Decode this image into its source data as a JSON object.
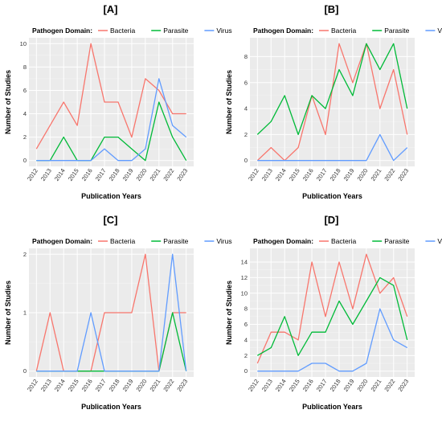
{
  "legend": {
    "title": "Pathogen Domain:",
    "items": [
      {
        "name": "Bacteria",
        "color": "#F8766D"
      },
      {
        "name": "Parasite",
        "color": "#00BA38"
      },
      {
        "name": "Virus",
        "color": "#619CFF"
      }
    ]
  },
  "chart_data": [
    {
      "type": "line",
      "title": "[A]",
      "xlabel": "Publication Years",
      "ylabel": "Number of Studies",
      "x": [
        "2012",
        "2013",
        "2014",
        "2015",
        "2016",
        "2017",
        "2018",
        "2019",
        "2020",
        "2021",
        "2022",
        "2023"
      ],
      "ylim": [
        0,
        10
      ],
      "yticks": [
        0,
        2,
        4,
        6,
        8,
        10
      ],
      "grid": true,
      "legend_position": "top",
      "series": [
        {
          "name": "Bacteria",
          "values": [
            1,
            3,
            5,
            3,
            10,
            5,
            5,
            2,
            7,
            6,
            4,
            4
          ]
        },
        {
          "name": "Parasite",
          "values": [
            0,
            0,
            2,
            0,
            0,
            2,
            2,
            1,
            0,
            5,
            2,
            0
          ]
        },
        {
          "name": "Virus",
          "values": [
            0,
            0,
            0,
            0,
            0,
            1,
            0,
            0,
            1,
            7,
            3,
            2
          ]
        }
      ]
    },
    {
      "type": "line",
      "title": "[B]",
      "xlabel": "Publication Years",
      "ylabel": "Number of Studies",
      "x": [
        "2012",
        "2013",
        "2014",
        "2015",
        "2016",
        "2017",
        "2018",
        "2019",
        "2020",
        "2021",
        "2022",
        "2023"
      ],
      "ylim": [
        0,
        9
      ],
      "yticks": [
        0,
        2,
        4,
        6,
        8
      ],
      "grid": true,
      "legend_position": "top",
      "series": [
        {
          "name": "Bacteria",
          "values": [
            0,
            1,
            0,
            1,
            5,
            2,
            9,
            6,
            9,
            4,
            7,
            2
          ]
        },
        {
          "name": "Parasite",
          "values": [
            2,
            3,
            5,
            2,
            5,
            4,
            7,
            5,
            9,
            7,
            9,
            4
          ]
        },
        {
          "name": "Virus",
          "values": [
            0,
            0,
            0,
            0,
            0,
            0,
            0,
            0,
            0,
            2,
            0,
            1
          ]
        }
      ]
    },
    {
      "type": "line",
      "title": "[C]",
      "xlabel": "Publication Years",
      "ylabel": "Number of Studies",
      "x": [
        "2012",
        "2013",
        "2014",
        "2015",
        "2016",
        "2017",
        "2018",
        "2019",
        "2020",
        "2021",
        "2022",
        "2023"
      ],
      "ylim": [
        0,
        2
      ],
      "yticks": [
        0,
        1,
        2
      ],
      "grid": true,
      "legend_position": "top",
      "series": [
        {
          "name": "Bacteria",
          "values": [
            0,
            1,
            0,
            0,
            0,
            1,
            1,
            1,
            2,
            0,
            1,
            1
          ]
        },
        {
          "name": "Parasite",
          "values": [
            0,
            0,
            0,
            0,
            0,
            0,
            0,
            0,
            0,
            0,
            1,
            0
          ]
        },
        {
          "name": "Virus",
          "values": [
            0,
            0,
            0,
            0,
            1,
            0,
            0,
            0,
            0,
            0,
            2,
            0
          ]
        }
      ]
    },
    {
      "type": "line",
      "title": "[D]",
      "xlabel": "Publication Years",
      "ylabel": "Number of Studies",
      "x": [
        "2012",
        "2013",
        "2014",
        "2015",
        "2016",
        "2017",
        "2018",
        "2019",
        "2020",
        "2021",
        "2022",
        "2023"
      ],
      "ylim": [
        0,
        15
      ],
      "yticks": [
        0,
        2,
        4,
        6,
        8,
        10,
        12,
        14
      ],
      "grid": true,
      "legend_position": "top",
      "series": [
        {
          "name": "Bacteria",
          "values": [
            1,
            5,
            5,
            4,
            14,
            7,
            14,
            8,
            15,
            10,
            12,
            7
          ]
        },
        {
          "name": "Parasite",
          "values": [
            2,
            3,
            7,
            2,
            5,
            5,
            9,
            6,
            9,
            12,
            11,
            4
          ]
        },
        {
          "name": "Virus",
          "values": [
            0,
            0,
            0,
            0,
            1,
            1,
            0,
            0,
            1,
            8,
            4,
            3
          ]
        }
      ]
    }
  ]
}
